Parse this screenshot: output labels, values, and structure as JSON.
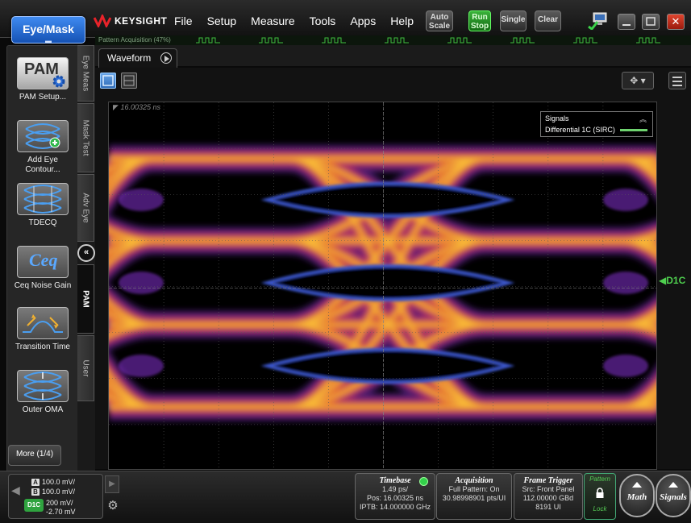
{
  "header": {
    "mode_button": "Eye/Mask",
    "brand": "KEYSIGHT",
    "menu": [
      "File",
      "Setup",
      "Measure",
      "Tools",
      "Apps",
      "Help"
    ],
    "buttons": {
      "autoscale": [
        "Auto",
        "Scale"
      ],
      "runstop": [
        "Run",
        "Stop"
      ],
      "single": "Single",
      "clear": "Clear"
    },
    "close_glyph": "✕"
  },
  "pattern_acquisition": {
    "label": "Pattern Acquisition",
    "percent": "(47%)",
    "progress": 0.47
  },
  "left_panel": {
    "items": [
      {
        "name": "pam-setup",
        "icon_text": "PAM",
        "label": "PAM Setup..."
      },
      {
        "name": "add-eye-contour",
        "label": "Add Eye Contour..."
      },
      {
        "name": "tdecq",
        "label": "TDECQ"
      },
      {
        "name": "ceq-noise-gain",
        "icon_text": "Ceq",
        "label": "Ceq Noise Gain"
      },
      {
        "name": "transition-time",
        "label": "Transition Time"
      },
      {
        "name": "outer-oma",
        "label": "Outer OMA"
      }
    ],
    "more_button": "More (1/4)"
  },
  "vertical_tabs": [
    "Eye Meas",
    "Mask Test",
    "Adv Eye",
    "PAM",
    "User"
  ],
  "active_vertical_tab": "PAM",
  "waveform": {
    "tab_label": "Waveform",
    "time_reference": "16.00325 ns",
    "pan_glyph": "✥ ▾",
    "legend": {
      "title": "Signals",
      "entry": "Differential 1C (SIRC)",
      "color": "#6fd36f"
    },
    "channel_marker": "◀D1C"
  },
  "channels": {
    "a": {
      "badge": "A",
      "value": "100.0 mV/"
    },
    "b": {
      "badge": "B",
      "value": "100.0 mV/"
    },
    "d1c": {
      "badge": "D1C",
      "scale": "200 mV/",
      "offset": "-2.70 mV"
    }
  },
  "timebase": {
    "title": "Timebase",
    "scale": "1.49 ps/",
    "position": "Pos: 16.00325 ns",
    "iptb": "IPTB: 14.000000 GHz"
  },
  "acquisition": {
    "title": "Acquisition",
    "line1": "Full Pattern: On",
    "line2": "30.98998901 pts/UI"
  },
  "frame_trigger": {
    "title": "Frame Trigger",
    "line1": "Src: Front Panel",
    "line2": "112.00000 GBd",
    "line3": "8191 UI"
  },
  "pattern_lock": {
    "top": "Pattern",
    "bottom": "Lock"
  },
  "round_buttons": {
    "math": "Math",
    "signals": "Signals"
  }
}
